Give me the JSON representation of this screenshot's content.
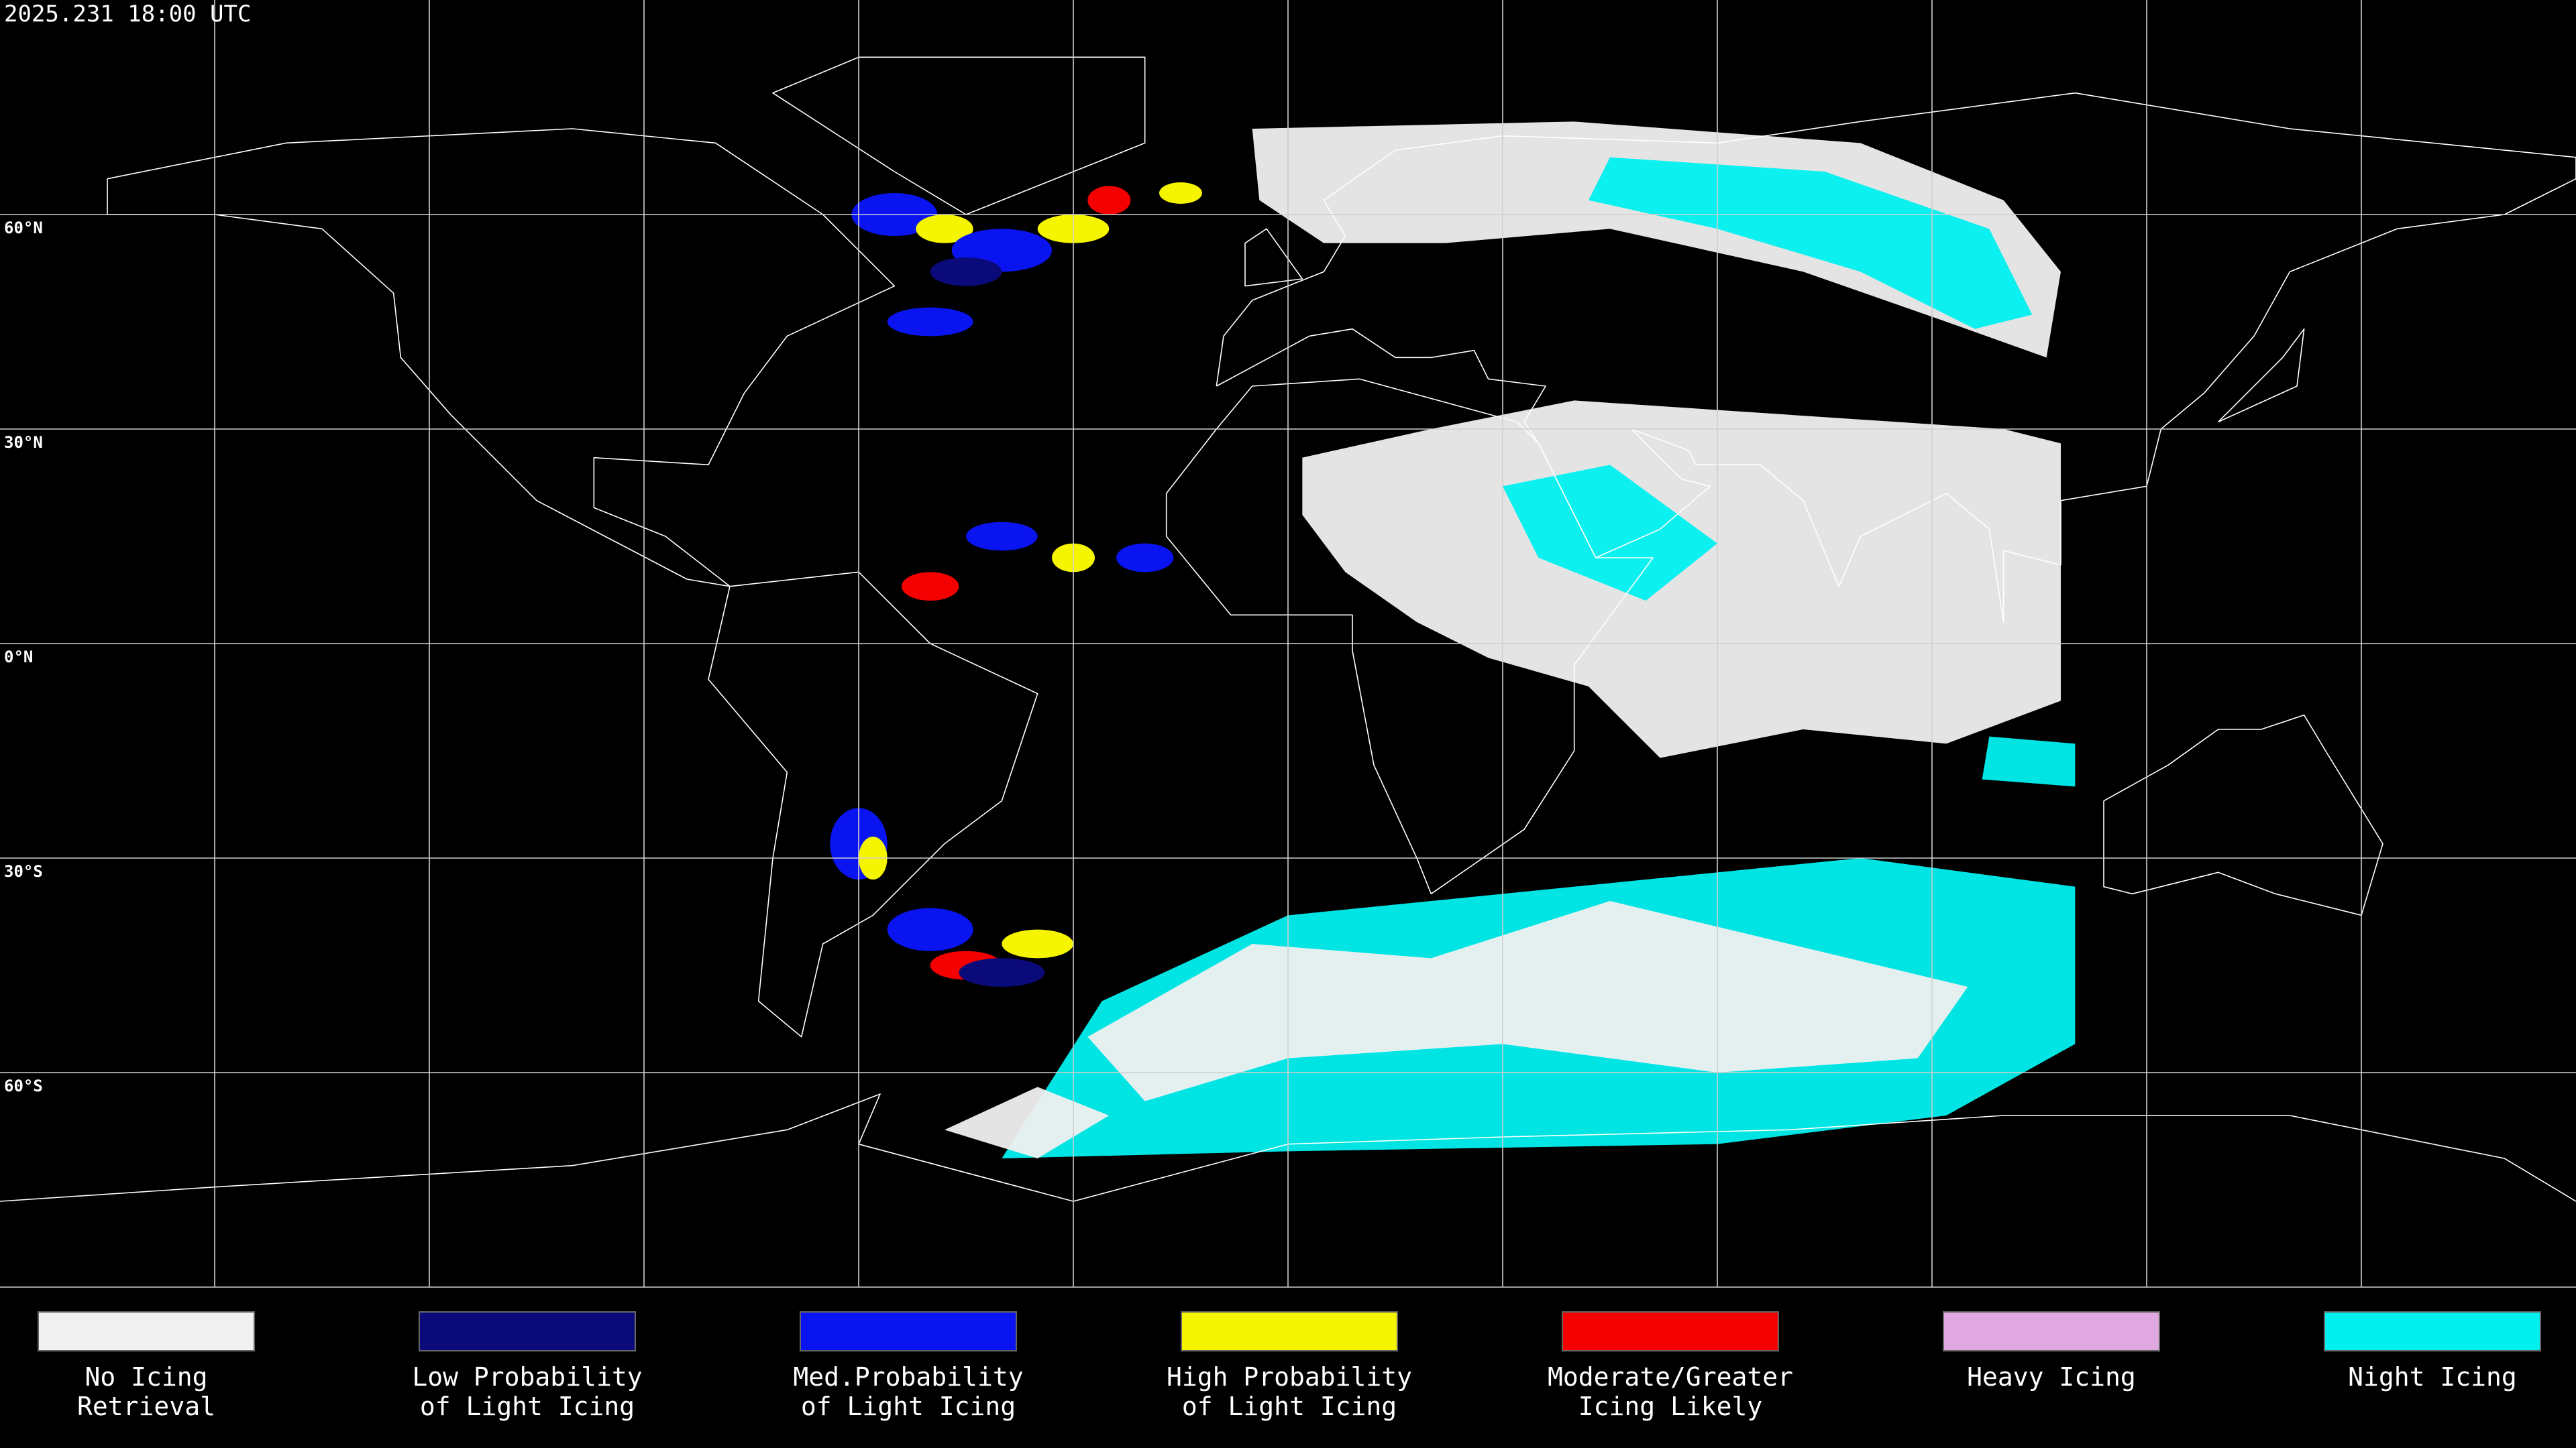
{
  "header": {
    "timestamp": "2025.231 18:00 UTC"
  },
  "map": {
    "latitude_labels": [
      "60°N",
      "30°N",
      "0°N",
      "30°S",
      "60°S"
    ]
  },
  "legend": {
    "items": [
      {
        "lines": [
          "No Icing",
          "Retrieval"
        ],
        "color": "#f0f0f0"
      },
      {
        "lines": [
          "Low Probability",
          "of Light Icing"
        ],
        "color": "#0a0a7a"
      },
      {
        "lines": [
          "Med.Probability",
          "of Light Icing"
        ],
        "color": "#0a14f0"
      },
      {
        "lines": [
          "High Probability",
          "of Light Icing"
        ],
        "color": "#f5f500"
      },
      {
        "lines": [
          "Moderate/Greater",
          "Icing Likely"
        ],
        "color": "#f50000"
      },
      {
        "lines": [
          "Heavy Icing"
        ],
        "color": "#e0a8e0"
      },
      {
        "lines": [
          "Night Icing"
        ],
        "color": "#00f0f0"
      }
    ]
  }
}
